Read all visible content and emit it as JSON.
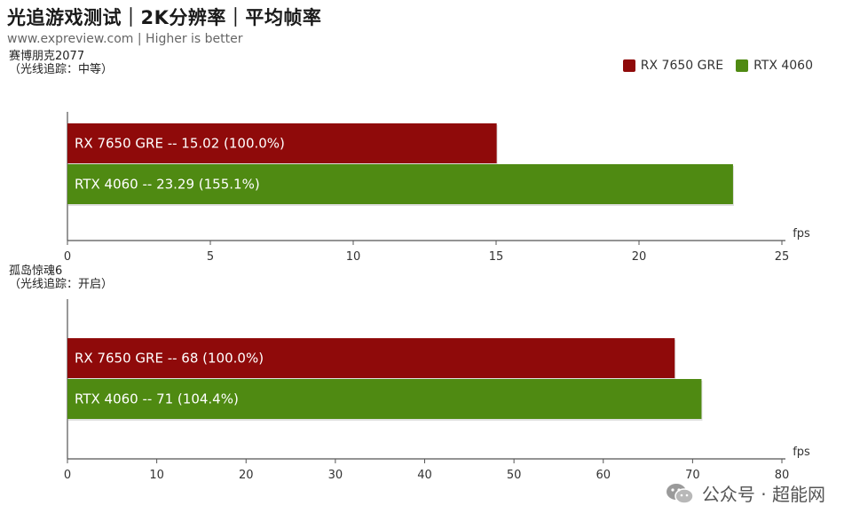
{
  "header": {
    "title": "光追游戏测试｜2K分辨率｜平均帧率",
    "subtitle": "www.expreview.com | Higher is better"
  },
  "colors": {
    "rx": "#8f0a0a",
    "rtx": "#4f8a12"
  },
  "legend": [
    {
      "label": "RX 7650 GRE",
      "color": "#8f0a0a"
    },
    {
      "label": "RTX 4060",
      "color": "#4f8a12"
    }
  ],
  "watermark": {
    "icon": "wechat-icon",
    "text": "公众号 · 超能网"
  },
  "chart_data": [
    {
      "type": "bar",
      "orientation": "horizontal",
      "game_label_line1": "赛博朋克2077",
      "game_label_line2": "（光线追踪：中等）",
      "unit": "fps",
      "xlim": [
        0,
        25
      ],
      "ticks": [
        0,
        5,
        10,
        15,
        20,
        25
      ],
      "series": [
        {
          "name": "RX 7650 GRE",
          "value": 15.02,
          "percent": "100.0%",
          "label": "RX 7650 GRE  --  15.02 (100.0%)"
        },
        {
          "name": "RTX 4060",
          "value": 23.29,
          "percent": "155.1%",
          "label": "RTX 4060  --  23.29 (155.1%)"
        }
      ]
    },
    {
      "type": "bar",
      "orientation": "horizontal",
      "game_label_line1": "孤岛惊魂6",
      "game_label_line2": "（光线追踪：开启）",
      "unit": "fps",
      "xlim": [
        0,
        80
      ],
      "ticks": [
        0,
        10,
        20,
        30,
        40,
        50,
        60,
        70,
        80
      ],
      "series": [
        {
          "name": "RX 7650 GRE",
          "value": 68,
          "percent": "100.0%",
          "label": "RX 7650 GRE  --  68 (100.0%)"
        },
        {
          "name": "RTX 4060",
          "value": 71,
          "percent": "104.4%",
          "label": "RTX 4060  --  71 (104.4%)"
        }
      ]
    }
  ]
}
